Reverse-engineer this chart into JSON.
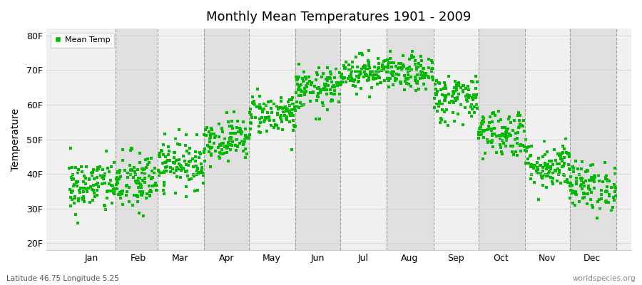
{
  "title": "Monthly Mean Temperatures 1901 - 2009",
  "ylabel": "Temperature",
  "xlabel_months": [
    "Jan",
    "Feb",
    "Mar",
    "Apr",
    "May",
    "Jun",
    "Jul",
    "Aug",
    "Sep",
    "Oct",
    "Nov",
    "Dec"
  ],
  "ytick_labels": [
    "20F",
    "30F",
    "40F",
    "50F",
    "60F",
    "70F",
    "80F"
  ],
  "ytick_values": [
    20,
    30,
    40,
    50,
    60,
    70,
    80
  ],
  "ylim": [
    18,
    82
  ],
  "dot_color": "#00bb00",
  "band_color_light": "#f0f0f0",
  "band_color_dark": "#e0e0e0",
  "legend_label": "Mean Temp",
  "footer_left": "Latitude 46.75 Longitude 5.25",
  "footer_right": "worldspecies.org",
  "n_years": 109,
  "monthly_means_f": [
    36.5,
    37.5,
    43.0,
    50.0,
    57.5,
    64.5,
    69.5,
    69.0,
    62.0,
    52.0,
    42.5,
    36.5
  ],
  "monthly_stds_f": [
    4.0,
    4.5,
    3.5,
    3.0,
    3.0,
    3.0,
    2.5,
    2.5,
    3.5,
    3.5,
    3.5,
    3.5
  ],
  "seed": 42,
  "days_per_month": [
    31,
    28,
    31,
    30,
    31,
    30,
    31,
    31,
    30,
    31,
    30,
    31
  ]
}
